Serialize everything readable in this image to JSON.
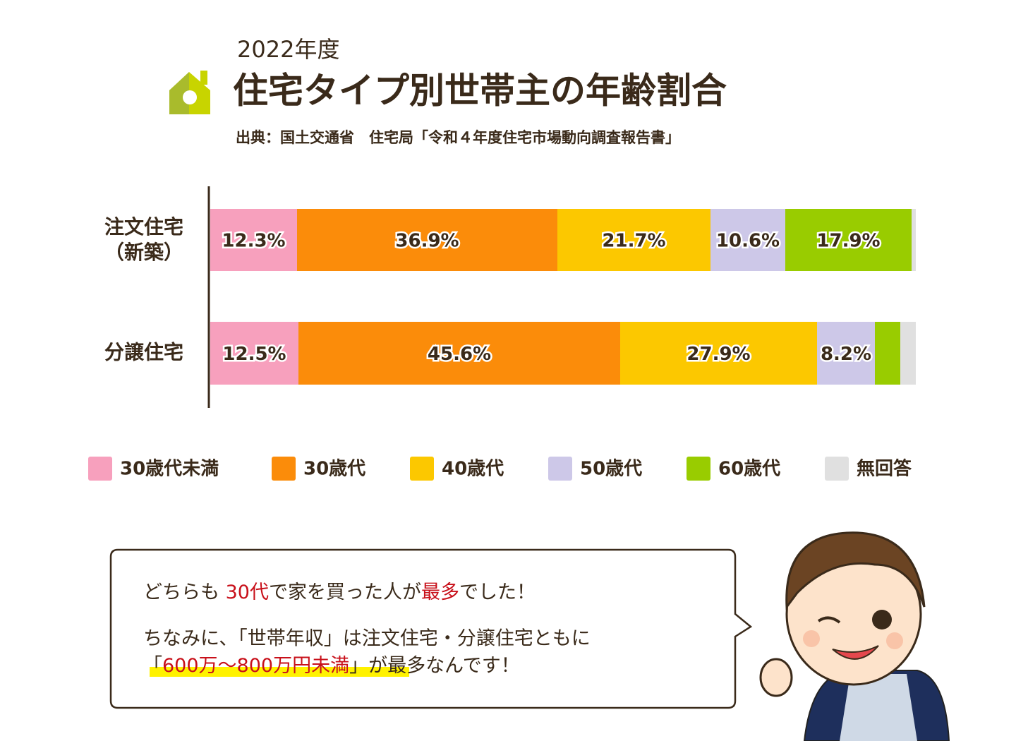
{
  "chart_data": {
    "type": "stacked-bar-horizontal",
    "supertitle": "2022年度",
    "title": "住宅タイプ別世帯主の年齢割合",
    "source": "出典：国土交通省　住宅局「令和４年度住宅市場動向調査報告書」",
    "categories": [
      "注文住宅\n（新築）",
      "分譲住宅"
    ],
    "xlim": [
      0,
      100
    ],
    "series": [
      {
        "name": "30歳代未満",
        "color": "#f7a0bd",
        "values": [
          12.3,
          12.5
        ],
        "value_labels": [
          "12.3%",
          "12.5%"
        ]
      },
      {
        "name": "30歳代",
        "color": "#fb8c0a",
        "values": [
          36.9,
          45.6
        ],
        "value_labels": [
          "36.9%",
          "45.6%"
        ]
      },
      {
        "name": "40歳代",
        "color": "#fcc800",
        "values": [
          21.7,
          27.9
        ],
        "value_labels": [
          "21.7%",
          "27.9%"
        ]
      },
      {
        "name": "50歳代",
        "color": "#cdc8e8",
        "values": [
          10.6,
          8.2
        ],
        "value_labels": [
          "10.6%",
          "8.2%"
        ]
      },
      {
        "name": "60歳代",
        "color": "#99cc00",
        "values": [
          17.9,
          3.6
        ],
        "value_labels": [
          "17.9%",
          null
        ]
      },
      {
        "name": "無回答",
        "color": "#e0e0e0",
        "values": [
          0.6,
          2.2
        ],
        "value_labels": [
          null,
          null
        ]
      }
    ]
  },
  "bubble": {
    "line1": [
      "どちらも",
      "30代",
      "で家を買った人が",
      "最多",
      "でした！"
    ],
    "line2": "ちなみに、「世帯年収」は注文住宅・分譲住宅ともに",
    "line3": [
      "「",
      "600万～800万円未満",
      "」が最多なんです！"
    ]
  }
}
